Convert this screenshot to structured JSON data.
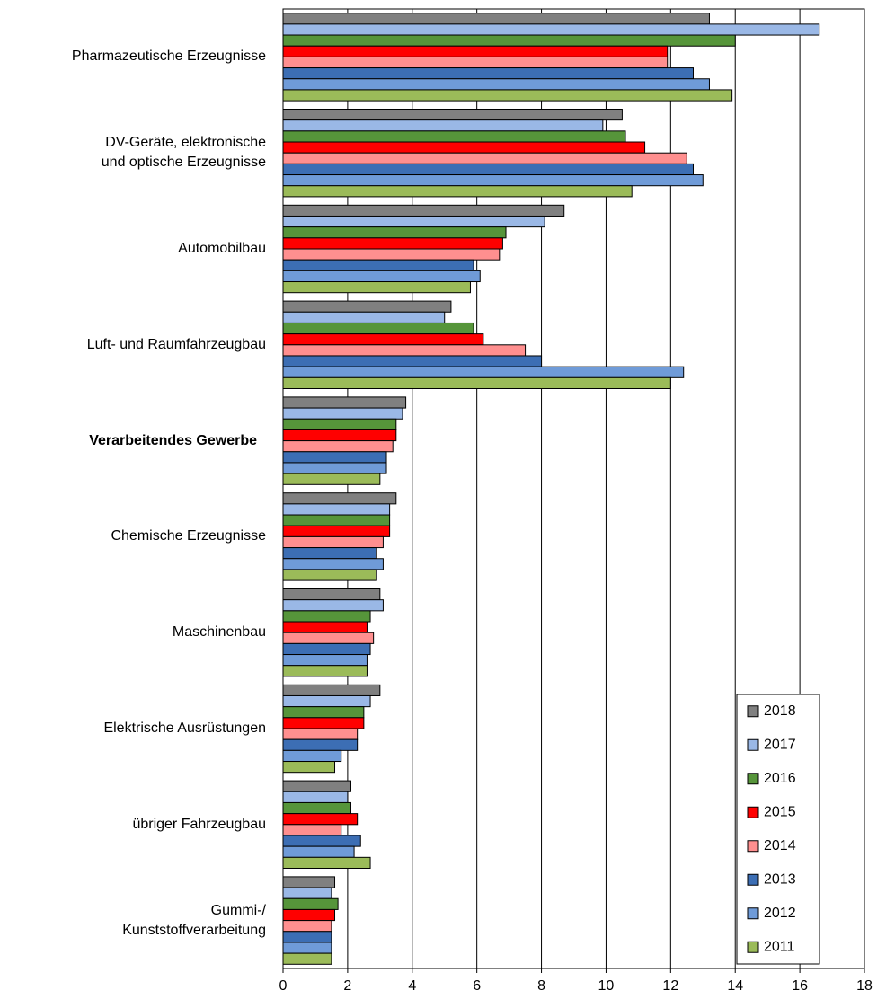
{
  "chart_data": {
    "type": "hbar",
    "categories": [
      "Pharmazeutische Erzeugnisse",
      "DV-Geräte, elektronische\nund optische Erzeugnisse",
      "Automobilbau",
      "Luft- und Raumfahrzeugbau",
      "Verarbeitendes Gewerbe",
      "Chemische Erzeugnisse",
      "Maschinenbau",
      "Elektrische Ausrüstungen",
      "übriger Fahrzeugbau",
      "Gummi-/\nKunststoffverarbeitung"
    ],
    "bold_category_index": 4,
    "series": [
      {
        "name": "2018",
        "color": "#808080",
        "values": [
          13.2,
          10.5,
          8.7,
          5.2,
          3.8,
          3.5,
          3.0,
          3.0,
          2.1,
          1.6
        ]
      },
      {
        "name": "2017",
        "color": "#9ab8e6",
        "values": [
          16.6,
          9.9,
          8.1,
          5.0,
          3.7,
          3.3,
          3.1,
          2.7,
          2.0,
          1.5
        ]
      },
      {
        "name": "2016",
        "color": "#56953a",
        "values": [
          14.0,
          10.6,
          6.9,
          5.9,
          3.5,
          3.3,
          2.7,
          2.5,
          2.1,
          1.7
        ]
      },
      {
        "name": "2015",
        "color": "#ff0000",
        "values": [
          11.9,
          11.2,
          6.8,
          6.2,
          3.5,
          3.3,
          2.6,
          2.5,
          2.3,
          1.6
        ]
      },
      {
        "name": "2014",
        "color": "#ff8f8f",
        "values": [
          11.9,
          12.5,
          6.7,
          7.5,
          3.4,
          3.1,
          2.8,
          2.3,
          1.8,
          1.5
        ]
      },
      {
        "name": "2013",
        "color": "#3c6eb4",
        "values": [
          12.7,
          12.7,
          5.9,
          8.0,
          3.2,
          2.9,
          2.7,
          2.3,
          2.4,
          1.5
        ]
      },
      {
        "name": "2012",
        "color": "#6f9bd8",
        "values": [
          13.2,
          13.0,
          6.1,
          12.4,
          3.2,
          3.1,
          2.6,
          1.8,
          2.2,
          1.5
        ]
      },
      {
        "name": "2011",
        "color": "#9bbb59",
        "values": [
          13.9,
          10.8,
          5.8,
          12.0,
          3.0,
          2.9,
          2.6,
          1.6,
          2.7,
          1.5
        ]
      }
    ],
    "xlim": [
      0,
      18
    ],
    "xticks": [
      0,
      2,
      4,
      6,
      8,
      10,
      12,
      14,
      16,
      18
    ],
    "grid": true,
    "legend": "bottom-right"
  }
}
